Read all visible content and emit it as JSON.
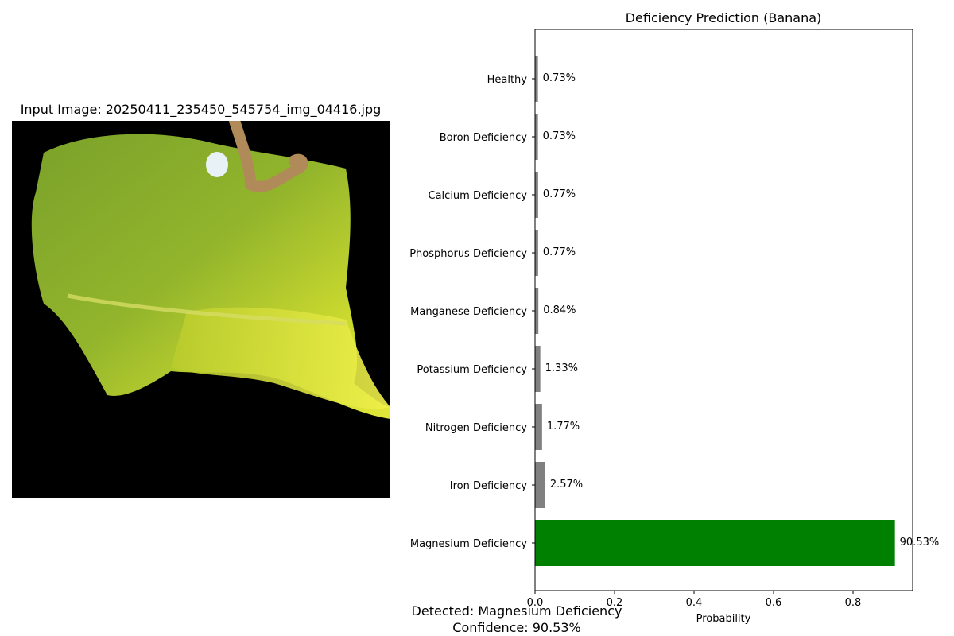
{
  "image_panel": {
    "title": "Input Image: 20250411_235450_545754_img_04416.jpg"
  },
  "chart_data": {
    "type": "bar",
    "orientation": "horizontal",
    "title": "Deficiency Prediction (Banana)",
    "xlabel": "Probability",
    "ylabel": "",
    "xlim": [
      0,
      0.95
    ],
    "xticks": [
      "0.0",
      "0.2",
      "0.4",
      "0.6",
      "0.8"
    ],
    "categories": [
      "Healthy",
      "Boron Deficiency",
      "Calcium Deficiency",
      "Phosphorus Deficiency",
      "Manganese Deficiency",
      "Potassium Deficiency",
      "Nitrogen Deficiency",
      "Iron Deficiency",
      "Magnesium Deficiency"
    ],
    "values": [
      0.0073,
      0.0073,
      0.0077,
      0.0077,
      0.0084,
      0.0133,
      0.0177,
      0.0257,
      0.9053
    ],
    "labels": [
      "0.73%",
      "0.73%",
      "0.77%",
      "0.77%",
      "0.84%",
      "1.33%",
      "1.77%",
      "2.57%",
      "90.53%"
    ],
    "highlight_index": 8,
    "colors": {
      "default": "#808080",
      "highlight": "#008000"
    },
    "grid": false
  },
  "footer": {
    "detected": "Detected: Magnesium Deficiency",
    "confidence": "Confidence: 90.53%"
  }
}
